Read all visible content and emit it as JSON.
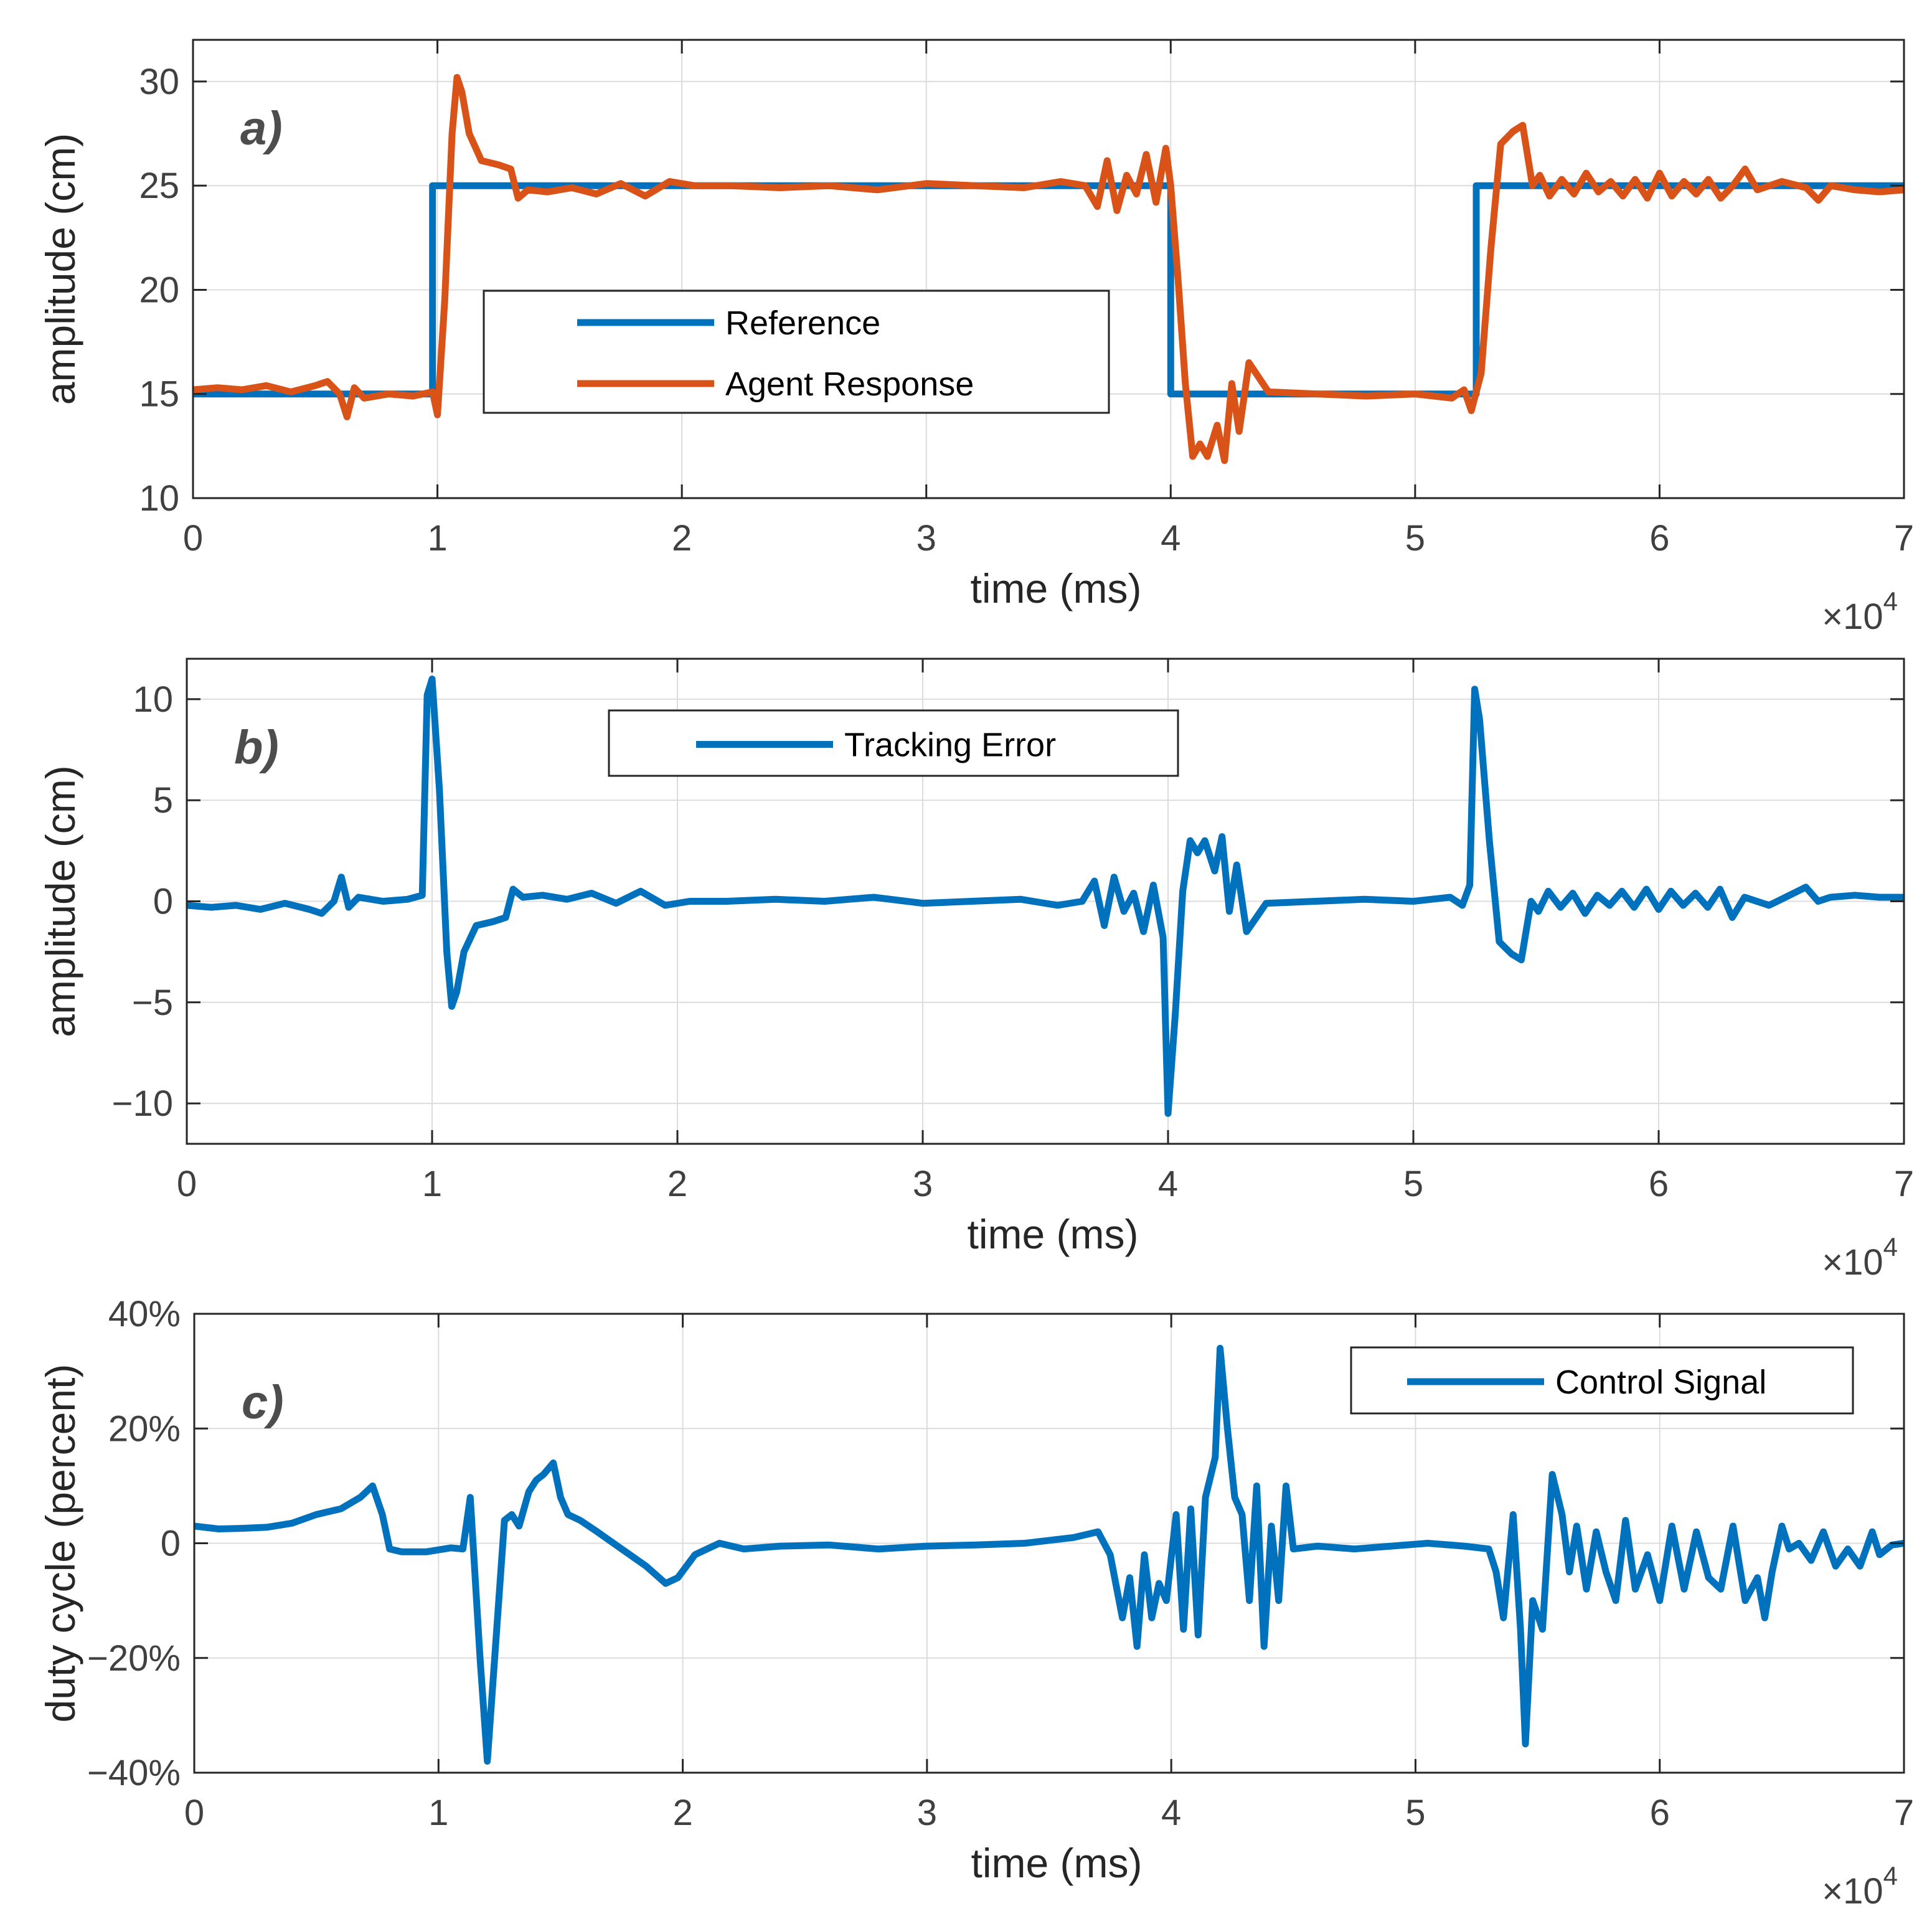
{
  "chart_data": [
    {
      "type": "line",
      "panel_label": "a)",
      "xlabel": "time (ms)",
      "ylabel": "amplitude (cm)",
      "x_multiplier": "×10",
      "x_multiplier_exp": "4",
      "xlim": [
        0,
        70000
      ],
      "ylim": [
        10,
        32
      ],
      "xticks": [
        0,
        10000,
        20000,
        30000,
        40000,
        50000,
        60000,
        70000
      ],
      "xtick_labels": [
        "0",
        "1",
        "2",
        "3",
        "4",
        "5",
        "6",
        "7"
      ],
      "yticks": [
        10,
        15,
        20,
        25,
        30
      ],
      "ytick_labels": [
        "10",
        "15",
        "20",
        "25",
        "30"
      ],
      "grid": true,
      "legend_position": "center-left",
      "series": [
        {
          "name": "Reference",
          "color": "#0072BD",
          "x": [
            0,
            9800,
            9800,
            40000,
            40000,
            52500,
            52500,
            70000
          ],
          "y": [
            15,
            15,
            25,
            25,
            15,
            15,
            25,
            25
          ]
        },
        {
          "name": "Agent Response",
          "color": "#D95319",
          "x": [
            0,
            1000,
            2000,
            3000,
            4000,
            5000,
            5500,
            6000,
            6300,
            6600,
            7000,
            8000,
            9000,
            9800,
            10000,
            10300,
            10600,
            10800,
            11000,
            11300,
            11800,
            12500,
            13000,
            13300,
            13700,
            14500,
            15500,
            16500,
            17500,
            18500,
            19500,
            20500,
            22000,
            24000,
            26000,
            28000,
            30000,
            32000,
            34000,
            35500,
            36500,
            37000,
            37400,
            37800,
            38200,
            38600,
            39000,
            39400,
            39800,
            40000,
            40300,
            40600,
            40900,
            41200,
            41500,
            41900,
            42200,
            42500,
            42800,
            43200,
            44000,
            46000,
            48000,
            50000,
            51500,
            52000,
            52300,
            52700,
            53100,
            53500,
            54000,
            54400,
            54800,
            55100,
            55500,
            56000,
            56500,
            57000,
            57500,
            58000,
            58500,
            59000,
            59500,
            60000,
            60500,
            61000,
            61500,
            62000,
            62500,
            63000,
            63500,
            64000,
            64500,
            65000,
            66000,
            66500,
            67000,
            68000,
            69000,
            70000
          ],
          "y": [
            15.2,
            15.3,
            15.2,
            15.4,
            15.1,
            15.4,
            15.6,
            15.0,
            13.9,
            15.3,
            14.8,
            15.0,
            14.9,
            15.1,
            14.0,
            19.5,
            27.5,
            30.2,
            29.5,
            27.5,
            26.2,
            26.0,
            25.8,
            24.4,
            24.8,
            24.7,
            24.9,
            24.6,
            25.1,
            24.5,
            25.2,
            25.0,
            25.0,
            24.9,
            25.0,
            24.8,
            25.1,
            25.0,
            24.9,
            25.2,
            25.0,
            24.0,
            26.2,
            23.8,
            25.5,
            24.6,
            26.5,
            24.2,
            26.8,
            25.0,
            20.5,
            15.5,
            12.0,
            12.6,
            12.0,
            13.5,
            11.8,
            15.5,
            13.2,
            16.5,
            15.1,
            15.0,
            14.9,
            15.0,
            14.8,
            15.2,
            14.2,
            16.0,
            22.0,
            27.0,
            27.6,
            27.9,
            25.0,
            25.5,
            24.5,
            25.3,
            24.6,
            25.6,
            24.7,
            25.2,
            24.5,
            25.3,
            24.4,
            25.6,
            24.5,
            25.2,
            24.6,
            25.3,
            24.4,
            25.0,
            25.8,
            24.8,
            25.0,
            25.2,
            24.9,
            24.3,
            25.0,
            24.8,
            24.7,
            24.8
          ]
        }
      ]
    },
    {
      "type": "line",
      "panel_label": "b)",
      "xlabel": "time (ms)",
      "ylabel": "amplitude (cm)",
      "x_multiplier": "×10",
      "x_multiplier_exp": "4",
      "xlim": [
        0,
        70000
      ],
      "ylim": [
        -12,
        12
      ],
      "xticks": [
        0,
        10000,
        20000,
        30000,
        40000,
        50000,
        60000,
        70000
      ],
      "xtick_labels": [
        "0",
        "1",
        "2",
        "3",
        "4",
        "5",
        "6",
        "7"
      ],
      "yticks": [
        -10,
        -5,
        0,
        5,
        10
      ],
      "ytick_labels": [
        "−10",
        "−5",
        "0",
        "5",
        "10"
      ],
      "grid": true,
      "legend_position": "top-center",
      "series": [
        {
          "name": "Tracking Error",
          "color": "#0072BD",
          "x": [
            0,
            1000,
            2000,
            3000,
            4000,
            5000,
            5500,
            6000,
            6300,
            6600,
            7000,
            8000,
            9000,
            9600,
            9800,
            10000,
            10300,
            10600,
            10800,
            11000,
            11300,
            11800,
            12500,
            13000,
            13300,
            13700,
            14500,
            15500,
            16500,
            17500,
            18500,
            19500,
            20500,
            22000,
            24000,
            26000,
            28000,
            30000,
            32000,
            34000,
            35500,
            36500,
            37000,
            37400,
            37800,
            38200,
            38600,
            39000,
            39400,
            39800,
            40000,
            40300,
            40600,
            40900,
            41200,
            41500,
            41900,
            42200,
            42500,
            42800,
            43200,
            44000,
            46000,
            48000,
            50000,
            51500,
            52000,
            52300,
            52500,
            52700,
            53100,
            53500,
            54000,
            54400,
            54800,
            55100,
            55500,
            56000,
            56500,
            57000,
            57500,
            58000,
            58500,
            59000,
            59500,
            60000,
            60500,
            61000,
            61500,
            62000,
            62500,
            63000,
            63500,
            64000,
            64500,
            65000,
            66000,
            66500,
            67000,
            68000,
            69000,
            70000
          ],
          "y": [
            -0.2,
            -0.3,
            -0.2,
            -0.4,
            -0.1,
            -0.4,
            -0.6,
            0.0,
            1.2,
            -0.3,
            0.2,
            0.0,
            0.1,
            0.3,
            10.2,
            11.0,
            5.5,
            -2.5,
            -5.2,
            -4.5,
            -2.5,
            -1.2,
            -1.0,
            -0.8,
            0.6,
            0.2,
            0.3,
            0.1,
            0.4,
            -0.1,
            0.5,
            -0.2,
            0.0,
            0.0,
            0.1,
            0.0,
            0.2,
            -0.1,
            0.0,
            0.1,
            -0.2,
            0.0,
            1.0,
            -1.2,
            1.2,
            -0.5,
            0.4,
            -1.5,
            0.8,
            -1.8,
            -10.5,
            -5.5,
            0.5,
            3.0,
            2.4,
            3.0,
            1.5,
            3.2,
            -0.5,
            1.8,
            -1.5,
            -0.1,
            0.0,
            0.1,
            0.0,
            0.2,
            -0.2,
            0.8,
            10.5,
            9.0,
            3.0,
            -2.0,
            -2.6,
            -2.9,
            0.0,
            -0.5,
            0.5,
            -0.3,
            0.4,
            -0.6,
            0.3,
            -0.2,
            0.5,
            -0.3,
            0.6,
            -0.4,
            0.5,
            -0.2,
            0.4,
            -0.3,
            0.6,
            -0.8,
            0.2,
            0.0,
            -0.2,
            0.1,
            0.7,
            0.0,
            0.2,
            0.3,
            0.2,
            0.2
          ]
        }
      ]
    },
    {
      "type": "line",
      "panel_label": "c)",
      "xlabel": "time (ms)",
      "ylabel": "duty cycle (percent)",
      "x_multiplier": "×10",
      "x_multiplier_exp": "4",
      "xlim": [
        0,
        70000
      ],
      "ylim": [
        -40,
        40
      ],
      "xticks": [
        0,
        10000,
        20000,
        30000,
        40000,
        50000,
        60000,
        70000
      ],
      "xtick_labels": [
        "0",
        "1",
        "2",
        "3",
        "4",
        "5",
        "6",
        "7"
      ],
      "yticks": [
        -40,
        -20,
        0,
        20,
        40
      ],
      "ytick_labels": [
        "−40%",
        "−20%",
        "0",
        "20%",
        "40%"
      ],
      "grid": true,
      "legend_position": "top-right",
      "series": [
        {
          "name": "Control Signal",
          "color": "#0072BD",
          "x": [
            0,
            1000,
            2000,
            3000,
            4000,
            5000,
            6000,
            6800,
            7300,
            7700,
            8000,
            8500,
            9500,
            10500,
            11000,
            11300,
            11700,
            12000,
            12300,
            12700,
            13000,
            13300,
            13700,
            14000,
            14300,
            14700,
            15000,
            15300,
            15800,
            16500,
            17500,
            18500,
            19300,
            19800,
            20500,
            21500,
            22500,
            24000,
            26000,
            28000,
            30000,
            32000,
            34000,
            36000,
            37000,
            37500,
            38000,
            38300,
            38600,
            38900,
            39200,
            39500,
            39800,
            40200,
            40500,
            40800,
            41100,
            41400,
            41800,
            42000,
            42300,
            42600,
            42900,
            43200,
            43500,
            43800,
            44100,
            44400,
            44700,
            45000,
            46000,
            47500,
            49000,
            50500,
            52000,
            53000,
            53300,
            53600,
            54000,
            54300,
            54500,
            54800,
            55200,
            55600,
            56000,
            56300,
            56600,
            57000,
            57400,
            57800,
            58200,
            58600,
            59000,
            59500,
            60000,
            60500,
            61000,
            61500,
            62000,
            62500,
            63000,
            63500,
            64000,
            64300,
            64600,
            65000,
            65300,
            65700,
            66200,
            66700,
            67200,
            67700,
            68200,
            68700,
            69000,
            69500,
            70000
          ],
          "y": [
            3,
            2.5,
            2.6,
            2.8,
            3.5,
            5,
            6,
            8,
            10,
            5,
            -1,
            -1.5,
            -1.5,
            -0.8,
            -1,
            8,
            -20,
            -38,
            -20,
            4,
            5,
            3,
            9,
            11,
            12,
            14,
            8,
            5,
            4,
            2,
            -1,
            -4,
            -7,
            -6,
            -2,
            0,
            -1,
            -0.5,
            -0.3,
            -1,
            -0.5,
            -0.3,
            0,
            1,
            2,
            -2,
            -13,
            -6,
            -18,
            -2,
            -13,
            -7,
            -10,
            5,
            -15,
            6,
            -16,
            8,
            15,
            34,
            20,
            8,
            5,
            -10,
            10,
            -18,
            3,
            -10,
            10,
            -1,
            -0.5,
            -1,
            -0.5,
            0,
            -0.5,
            -1,
            -5,
            -13,
            5,
            -15,
            -35,
            -10,
            -15,
            12,
            5,
            -5,
            3,
            -8,
            2,
            -5,
            -10,
            4,
            -8,
            -2,
            -10,
            3,
            -8,
            2,
            -6,
            -8,
            3,
            -10,
            -6,
            -13,
            -5,
            3,
            -1,
            0,
            -3,
            2,
            -4,
            -1,
            -4,
            2,
            -2,
            -0.3,
            0
          ]
        }
      ]
    }
  ]
}
